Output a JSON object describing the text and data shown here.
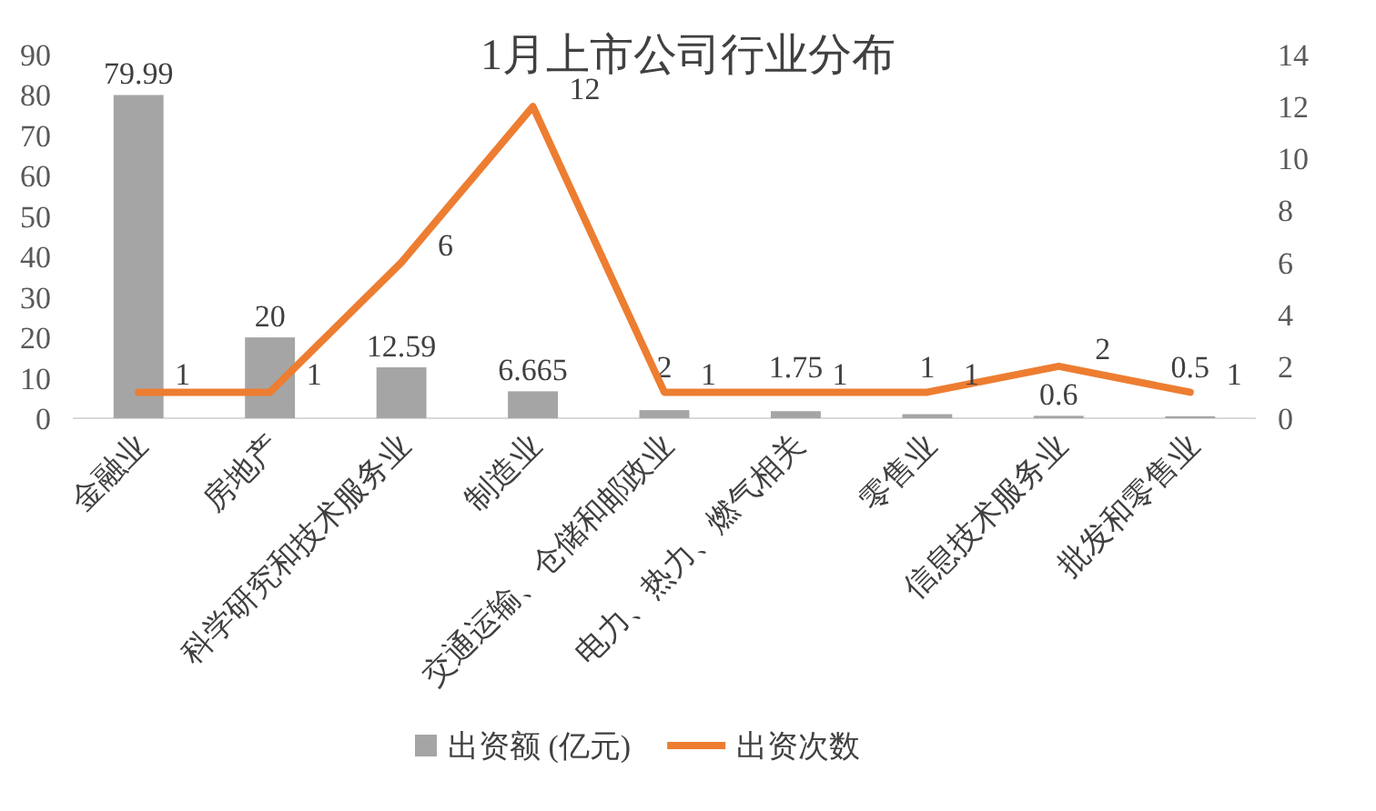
{
  "chart_data": {
    "type": "bar",
    "title": "1月上市公司行业分布",
    "categories": [
      "金融业",
      "房地产",
      "科学研究和技术服务业",
      "制造业",
      "交通运输、仓储和邮政业",
      "电力、热力、燃气相关",
      "零售业",
      "信息技术服务业",
      "批发和零售业"
    ],
    "series": [
      {
        "name": "出资额 (亿元)",
        "color": "#a5a5a5",
        "values": [
          79.99,
          20,
          12.59,
          6.665,
          2,
          1.75,
          1,
          0.6,
          0.5
        ]
      },
      {
        "name": "出资次数",
        "type": "line",
        "axis": "y2",
        "color": "#ed7d31",
        "values": [
          1,
          1,
          6,
          12,
          1,
          1,
          1,
          2,
          1
        ]
      }
    ],
    "ylim": [
      0,
      90
    ],
    "yticks": [
      0,
      10,
      20,
      30,
      40,
      50,
      60,
      70,
      80,
      90
    ],
    "y2lim": [
      0,
      14
    ],
    "y2ticks": [
      0,
      2,
      4,
      6,
      8,
      10,
      12,
      14
    ],
    "data_labels": true,
    "legend": "bottom"
  }
}
